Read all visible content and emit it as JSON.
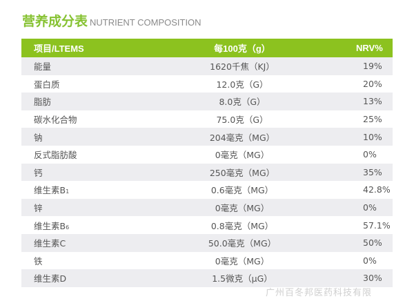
{
  "title": {
    "cn": "营养成分表",
    "en": "NUTRIENT COMPOSITION"
  },
  "columns": [
    "项目/LTEMS",
    "每100克（g）",
    "NRV%"
  ],
  "rows": [
    {
      "item": "能量",
      "amount": "1620千焦（KJ）",
      "nrv": "19%"
    },
    {
      "item": "蛋白质",
      "amount": "12.0克（G）",
      "nrv": "20%"
    },
    {
      "item": "脂肪",
      "amount": "8.0克（G）",
      "nrv": "13%"
    },
    {
      "item": "碳水化合物",
      "amount": "75.0克（G）",
      "nrv": "25%"
    },
    {
      "item": "钠",
      "amount": "204毫克（MG）",
      "nrv": "10%"
    },
    {
      "item": "反式脂肪酸",
      "amount": "0毫克（MG）",
      "nrv": "0%"
    },
    {
      "item": "钙",
      "amount": "250毫克（MG）",
      "nrv": "35%"
    },
    {
      "item": "维生素B",
      "sub": "1",
      "amount": "0.6毫克（MG）",
      "nrv": "42.8%"
    },
    {
      "item": "锌",
      "amount": "0毫克（MG）",
      "nrv": "0%"
    },
    {
      "item": "维生素B",
      "sub": "6",
      "amount": "0.8毫克（MG）",
      "nrv": "57.1%"
    },
    {
      "item": "维生素C",
      "amount": "50.0毫克（MG）",
      "nrv": "50%"
    },
    {
      "item": "铁",
      "amount": "0毫克（MG）",
      "nrv": "0%"
    },
    {
      "item": "维生素D",
      "amount": "1.5微克（μG）",
      "nrv": "30%"
    }
  ],
  "watermark": "广州百冬邦医药科技有限",
  "colors": {
    "accent": "#8cc21f",
    "stripe": "#ededf0"
  }
}
